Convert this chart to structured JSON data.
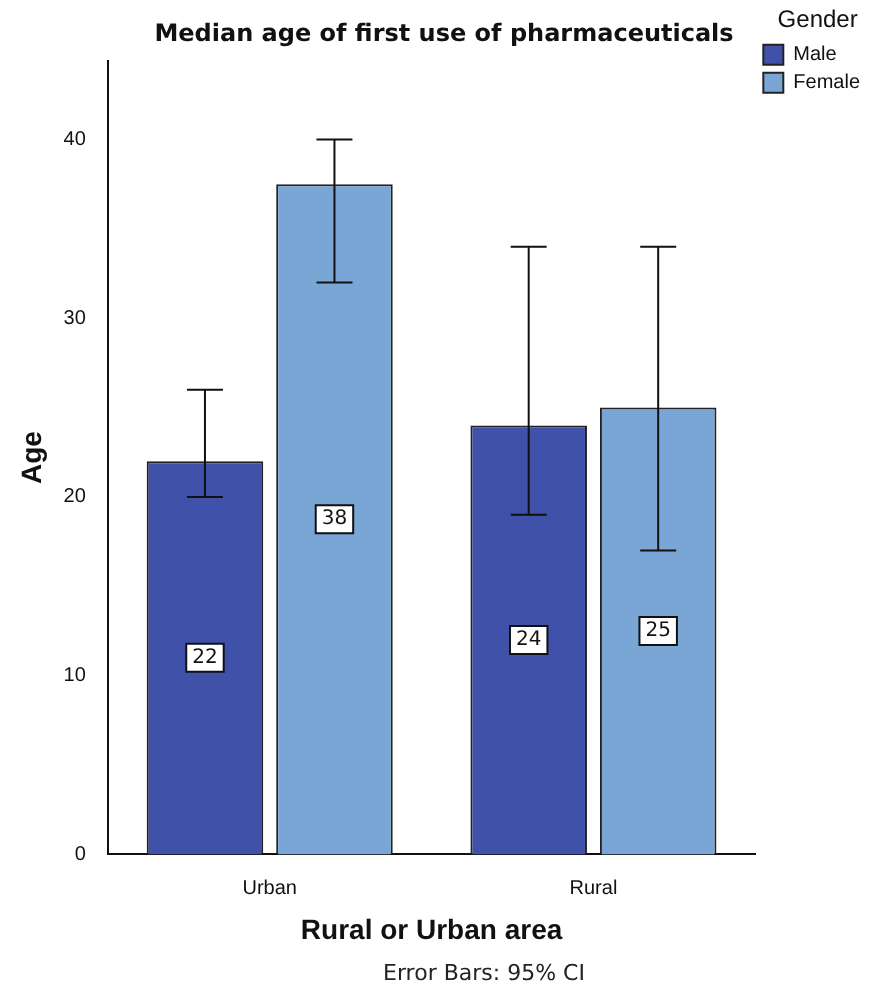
{
  "chart_data": {
    "type": "bar",
    "title": "Median age of first use of pharmaceuticals",
    "xlabel": "Rural or Urban area",
    "ylabel": "Age",
    "legend_title": "Gender",
    "categories": [
      "Urban",
      "Rural"
    ],
    "series": [
      {
        "name": "Male",
        "color": "#3f51a8",
        "values": [
          22,
          24
        ],
        "errors": [
          [
            20,
            26
          ],
          [
            19,
            34
          ]
        ],
        "value_labels": [
          "22",
          "24"
        ]
      },
      {
        "name": "Female",
        "color": "#7aa6d6",
        "values": [
          37.5,
          25
        ],
        "errors": [
          [
            32,
            40
          ],
          [
            17,
            34
          ]
        ],
        "value_labels": [
          "38",
          "25"
        ]
      }
    ],
    "ylim": [
      0,
      44.4
    ],
    "yticks": [
      0,
      10,
      20,
      30,
      40
    ],
    "grid": false,
    "legend": "top right",
    "annotations": [
      "Error Bars: 95% CI"
    ]
  }
}
